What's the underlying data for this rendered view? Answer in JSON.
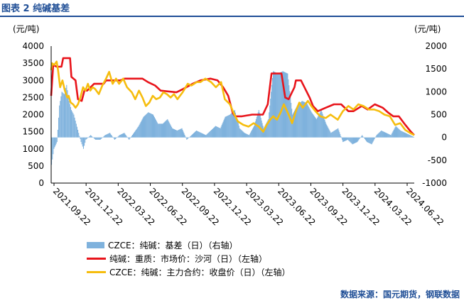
{
  "figure": {
    "title": "图表 2  纯碱基差",
    "source": "数据来源：国元期货，钢联数据"
  },
  "colors": {
    "title": "#1f4e96",
    "basis_bar": "#7fb2dd",
    "spot_line": "#e8141b",
    "futures_line": "#f6bd0e"
  },
  "chart_data": {
    "type": "bar+line",
    "left_axis": {
      "unit_label": "(元/吨)",
      "ylim": [
        0,
        4000
      ],
      "ticks": [
        "0",
        "500",
        "1000",
        "1500",
        "2000",
        "2500",
        "3000",
        "3500",
        "4000"
      ]
    },
    "right_axis": {
      "unit_label": "(元/吨)",
      "ylim": [
        -1000,
        2000
      ],
      "ticks": [
        "-1000",
        "-500",
        "0",
        "500",
        "1000",
        "1500",
        "2000"
      ]
    },
    "x_ticks": [
      "2021.09.22",
      "2021.12.22",
      "2022.03.22",
      "2022.06.22",
      "2022.09.22",
      "2022.12.22",
      "2023.03.22",
      "2023.06.22",
      "2023.09.22",
      "2023.12.22",
      "2024.03.22",
      "2024.06.22"
    ],
    "x_range": [
      "2021-09-22",
      "2024-08-15"
    ],
    "series": [
      {
        "name": "CZCE：纯碱：基差（日）（右轴）",
        "type": "bar",
        "axis": "right",
        "points": [
          [
            "2021-09-22",
            -600
          ],
          [
            "2021-09-29",
            -250
          ],
          [
            "2021-10-08",
            -100
          ],
          [
            "2021-10-15",
            700
          ],
          [
            "2021-10-22",
            1000
          ],
          [
            "2021-10-29",
            950
          ],
          [
            "2021-11-05",
            1150
          ],
          [
            "2021-11-12",
            800
          ],
          [
            "2021-11-19",
            600
          ],
          [
            "2021-11-26",
            500
          ],
          [
            "2021-12-03",
            300
          ],
          [
            "2021-12-10",
            100
          ],
          [
            "2021-12-17",
            -100
          ],
          [
            "2021-12-24",
            -250
          ],
          [
            "2021-12-31",
            -50
          ],
          [
            "2022-01-14",
            50
          ],
          [
            "2022-01-28",
            -50
          ],
          [
            "2022-02-11",
            -50
          ],
          [
            "2022-02-25",
            50
          ],
          [
            "2022-03-11",
            100
          ],
          [
            "2022-03-25",
            -50
          ],
          [
            "2022-04-08",
            50
          ],
          [
            "2022-04-22",
            100
          ],
          [
            "2022-05-06",
            -50
          ],
          [
            "2022-05-20",
            100
          ],
          [
            "2022-06-03",
            250
          ],
          [
            "2022-06-17",
            450
          ],
          [
            "2022-07-01",
            550
          ],
          [
            "2022-07-15",
            500
          ],
          [
            "2022-07-29",
            300
          ],
          [
            "2022-08-12",
            300
          ],
          [
            "2022-08-26",
            400
          ],
          [
            "2022-09-09",
            200
          ],
          [
            "2022-09-23",
            150
          ],
          [
            "2022-10-07",
            200
          ],
          [
            "2022-10-21",
            -50
          ],
          [
            "2022-11-04",
            50
          ],
          [
            "2022-11-18",
            150
          ],
          [
            "2022-12-02",
            100
          ],
          [
            "2022-12-16",
            50
          ],
          [
            "2022-12-30",
            150
          ],
          [
            "2023-01-13",
            250
          ],
          [
            "2023-01-27",
            200
          ],
          [
            "2023-02-10",
            450
          ],
          [
            "2023-02-24",
            500
          ],
          [
            "2023-03-10",
            600
          ],
          [
            "2023-03-24",
            200
          ],
          [
            "2023-04-07",
            100
          ],
          [
            "2023-04-21",
            50
          ],
          [
            "2023-05-05",
            250
          ],
          [
            "2023-05-19",
            600
          ],
          [
            "2023-06-02",
            200
          ],
          [
            "2023-06-16",
            400
          ],
          [
            "2023-06-30",
            1450
          ],
          [
            "2023-07-14",
            1400
          ],
          [
            "2023-07-28",
            1450
          ],
          [
            "2023-08-11",
            1400
          ],
          [
            "2023-08-25",
            500
          ],
          [
            "2023-09-08",
            700
          ],
          [
            "2023-09-22",
            800
          ],
          [
            "2023-10-06",
            750
          ],
          [
            "2023-10-20",
            550
          ],
          [
            "2023-11-03",
            400
          ],
          [
            "2023-11-17",
            600
          ],
          [
            "2023-12-01",
            300
          ],
          [
            "2023-12-15",
            100
          ],
          [
            "2024-01-05",
            200
          ],
          [
            "2024-01-19",
            -100
          ],
          [
            "2024-02-02",
            -50
          ],
          [
            "2024-02-16",
            -150
          ],
          [
            "2024-03-01",
            -100
          ],
          [
            "2024-03-15",
            50
          ],
          [
            "2024-03-29",
            -100
          ],
          [
            "2024-04-12",
            -150
          ],
          [
            "2024-04-26",
            50
          ],
          [
            "2024-05-10",
            150
          ],
          [
            "2024-05-24",
            100
          ],
          [
            "2024-06-07",
            50
          ],
          [
            "2024-06-21",
            250
          ],
          [
            "2024-07-05",
            150
          ],
          [
            "2024-07-19",
            100
          ],
          [
            "2024-08-02",
            50
          ],
          [
            "2024-08-15",
            0
          ]
        ]
      },
      {
        "name": "纯碱：重质：市场价：沙河（日）（左轴）",
        "type": "line",
        "axis": "left",
        "points": [
          [
            "2021-09-22",
            2550
          ],
          [
            "2021-09-28",
            3450
          ],
          [
            "2021-10-08",
            3400
          ],
          [
            "2021-10-22",
            3400
          ],
          [
            "2021-10-27",
            3650
          ],
          [
            "2021-11-16",
            3650
          ],
          [
            "2021-11-20",
            3100
          ],
          [
            "2021-12-02",
            3000
          ],
          [
            "2021-12-09",
            2450
          ],
          [
            "2021-12-20",
            2400
          ],
          [
            "2021-12-28",
            2700
          ],
          [
            "2022-01-05",
            2700
          ],
          [
            "2022-01-25",
            2900
          ],
          [
            "2022-02-22",
            2900
          ],
          [
            "2022-03-01",
            3000
          ],
          [
            "2022-04-11",
            3000
          ],
          [
            "2022-04-24",
            3050
          ],
          [
            "2022-06-15",
            3050
          ],
          [
            "2022-07-01",
            2950
          ],
          [
            "2022-07-22",
            2850
          ],
          [
            "2022-08-07",
            2700
          ],
          [
            "2022-09-22",
            2650
          ],
          [
            "2022-10-12",
            2750
          ],
          [
            "2022-11-08",
            2900
          ],
          [
            "2022-12-01",
            3000
          ],
          [
            "2022-12-30",
            3050
          ],
          [
            "2023-01-20",
            3000
          ],
          [
            "2023-02-05",
            2800
          ],
          [
            "2023-02-20",
            2550
          ],
          [
            "2023-03-05",
            2050
          ],
          [
            "2023-03-12",
            1950
          ],
          [
            "2023-04-01",
            1950
          ],
          [
            "2023-05-01",
            2000
          ],
          [
            "2023-06-01",
            2000
          ],
          [
            "2023-06-15",
            2300
          ],
          [
            "2023-06-26",
            3200
          ],
          [
            "2023-07-25",
            3200
          ],
          [
            "2023-08-05",
            2500
          ],
          [
            "2023-08-15",
            2450
          ],
          [
            "2023-09-01",
            2800
          ],
          [
            "2023-09-05",
            3000
          ],
          [
            "2023-09-20",
            3000
          ],
          [
            "2023-10-15",
            2500
          ],
          [
            "2023-10-25",
            2250
          ],
          [
            "2023-11-08",
            2100
          ],
          [
            "2023-12-01",
            2200
          ],
          [
            "2023-12-25",
            2300
          ],
          [
            "2024-01-15",
            2300
          ],
          [
            "2024-02-05",
            2100
          ],
          [
            "2024-02-20",
            2100
          ],
          [
            "2024-03-15",
            2250
          ],
          [
            "2024-04-01",
            2150
          ],
          [
            "2024-04-22",
            2300
          ],
          [
            "2024-05-15",
            2200
          ],
          [
            "2024-06-01",
            2050
          ],
          [
            "2024-06-15",
            1950
          ],
          [
            "2024-07-01",
            1950
          ],
          [
            "2024-07-20",
            1700
          ],
          [
            "2024-08-05",
            1500
          ],
          [
            "2024-08-15",
            1400
          ]
        ]
      },
      {
        "name": "CZCE：纯碱：主力合约：收盘价（日）（左轴）",
        "type": "line",
        "axis": "left",
        "points": [
          [
            "2021-09-22",
            3300
          ],
          [
            "2021-09-25",
            3500
          ],
          [
            "2021-10-01",
            3450
          ],
          [
            "2021-10-08",
            3550
          ],
          [
            "2021-10-12",
            3300
          ],
          [
            "2021-10-18",
            2800
          ],
          [
            "2021-10-25",
            3000
          ],
          [
            "2021-11-01",
            2700
          ],
          [
            "2021-11-08",
            2500
          ],
          [
            "2021-11-12",
            2550
          ],
          [
            "2021-11-18",
            2350
          ],
          [
            "2021-11-25",
            2300
          ],
          [
            "2021-12-02",
            2200
          ],
          [
            "2021-12-09",
            2300
          ],
          [
            "2021-12-16",
            2500
          ],
          [
            "2021-12-24",
            2800
          ],
          [
            "2021-12-31",
            2700
          ],
          [
            "2022-01-07",
            2900
          ],
          [
            "2022-01-14",
            2700
          ],
          [
            "2022-01-21",
            2800
          ],
          [
            "2022-01-28",
            2750
          ],
          [
            "2022-02-08",
            2600
          ],
          [
            "2022-02-18",
            2850
          ],
          [
            "2022-03-01",
            3050
          ],
          [
            "2022-03-10",
            3250
          ],
          [
            "2022-03-20",
            2900
          ],
          [
            "2022-03-30",
            3050
          ],
          [
            "2022-04-08",
            2900
          ],
          [
            "2022-04-20",
            3050
          ],
          [
            "2022-05-01",
            2800
          ],
          [
            "2022-05-15",
            2650
          ],
          [
            "2022-05-25",
            2450
          ],
          [
            "2022-06-05",
            2700
          ],
          [
            "2022-06-15",
            2500
          ],
          [
            "2022-06-25",
            2250
          ],
          [
            "2022-07-05",
            2350
          ],
          [
            "2022-07-15",
            2550
          ],
          [
            "2022-07-25",
            2450
          ],
          [
            "2022-08-05",
            2500
          ],
          [
            "2022-08-15",
            2650
          ],
          [
            "2022-08-25",
            2600
          ],
          [
            "2022-09-05",
            2500
          ],
          [
            "2022-09-15",
            2600
          ],
          [
            "2022-09-25",
            2450
          ],
          [
            "2022-10-10",
            2650
          ],
          [
            "2022-10-25",
            2900
          ],
          [
            "2022-11-05",
            2850
          ],
          [
            "2022-11-20",
            2950
          ],
          [
            "2022-12-01",
            2950
          ],
          [
            "2022-12-15",
            3050
          ],
          [
            "2023-01-01",
            2950
          ],
          [
            "2023-01-15",
            2800
          ],
          [
            "2023-01-30",
            2950
          ],
          [
            "2023-02-10",
            2450
          ],
          [
            "2023-02-25",
            2300
          ],
          [
            "2023-03-10",
            2000
          ],
          [
            "2023-03-20",
            1800
          ],
          [
            "2023-04-05",
            1700
          ],
          [
            "2023-04-20",
            1650
          ],
          [
            "2023-05-05",
            1750
          ],
          [
            "2023-05-20",
            1650
          ],
          [
            "2023-06-02",
            1500
          ],
          [
            "2023-06-12",
            1700
          ],
          [
            "2023-06-22",
            1850
          ],
          [
            "2023-07-01",
            1950
          ],
          [
            "2023-07-12",
            1850
          ],
          [
            "2023-07-22",
            2050
          ],
          [
            "2023-08-01",
            2300
          ],
          [
            "2023-08-15",
            2000
          ],
          [
            "2023-08-25",
            1750
          ],
          [
            "2023-09-05",
            2100
          ],
          [
            "2023-09-15",
            2350
          ],
          [
            "2023-09-25",
            2200
          ],
          [
            "2023-10-10",
            2400
          ],
          [
            "2023-10-20",
            2250
          ],
          [
            "2023-11-01",
            2100
          ],
          [
            "2023-11-15",
            1950
          ],
          [
            "2023-12-01",
            1900
          ],
          [
            "2023-12-15",
            2000
          ],
          [
            "2024-01-05",
            1850
          ],
          [
            "2024-01-20",
            2100
          ],
          [
            "2024-02-05",
            2250
          ],
          [
            "2024-02-20",
            2150
          ],
          [
            "2024-03-05",
            2300
          ],
          [
            "2024-03-20",
            2250
          ],
          [
            "2024-04-05",
            2150
          ],
          [
            "2024-04-20",
            2150
          ],
          [
            "2024-05-05",
            2100
          ],
          [
            "2024-05-20",
            2000
          ],
          [
            "2024-06-05",
            1950
          ],
          [
            "2024-06-20",
            1700
          ],
          [
            "2024-07-05",
            1750
          ],
          [
            "2024-07-20",
            1550
          ],
          [
            "2024-08-05",
            1450
          ],
          [
            "2024-08-15",
            1400
          ]
        ]
      }
    ]
  }
}
